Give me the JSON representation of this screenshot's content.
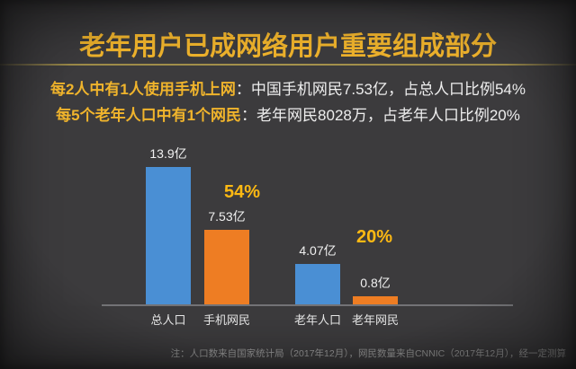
{
  "page": {
    "title": "老年用户已成网络用户重要组成部分",
    "subtitle_lines": [
      {
        "highlight": "每2人中有1人使用手机上网",
        "rest": "：中国手机网民7.53亿，占总人口比例54%"
      },
      {
        "highlight": "每5个老年人口中有1个网民",
        "rest": "：老年网民8028万，占老年人口比例20%"
      }
    ],
    "footnote": "注：人口数来自国家统计局（2017年12月），网民数量来自CNNIC（2017年12月），经一定测算"
  },
  "colors": {
    "slide_background": "#3c3b3d",
    "gold_text": "#eeb22c",
    "percent_gold": "#fdb913",
    "white_text": "#eeeeee",
    "blue_bar": "#4a8fd4",
    "orange_bar": "#ee7d23",
    "note_gray": "#9b9b9b",
    "divider_gold": "#9c8a48",
    "baseline_gray": "#737376"
  },
  "chart_data": {
    "type": "bar",
    "title": "老年用户已成网络用户重要组成部分",
    "categories": [
      "总人口",
      "手机网民",
      "老年人口",
      "老年网民"
    ],
    "values": [
      13.9,
      7.53,
      4.07,
      0.8
    ],
    "unit": "亿",
    "value_labels": [
      "13.9亿",
      "7.53亿",
      "4.07亿",
      "0.8亿"
    ],
    "bar_colors": [
      "#4a8fd4",
      "#ee7d23",
      "#4a8fd4",
      "#ee7d23"
    ],
    "annotations": [
      {
        "text": "54%"
      },
      {
        "text": "20%"
      }
    ],
    "xlabel": "",
    "ylabel": "",
    "ylim": [
      0,
      14
    ],
    "grid": false,
    "legend": false
  }
}
